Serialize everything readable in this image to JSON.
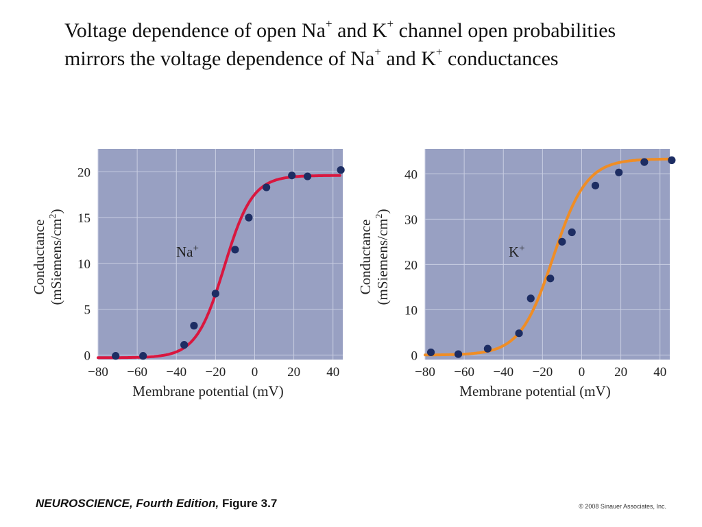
{
  "slide": {
    "title_parts": [
      "Voltage dependence of open Na",
      "+",
      " and K",
      "+",
      " channel open probabilities mirrors the voltage dependence of Na",
      "+",
      " and K",
      "+",
      " conductances"
    ],
    "footer_left_title": "NEUROSCIENCE, Fourth Edition,",
    "footer_left_fig": " Figure 3.7",
    "footer_right": "© 2008 Sinauer Associates, Inc."
  },
  "colors": {
    "plot_background": "#98a0c2",
    "grid": "#c9cee2",
    "marker": "#1d2d63",
    "na_curve": "#d9173f",
    "k_curve": "#ef8d25"
  },
  "chart_data": [
    {
      "type": "scatter",
      "xlabel": "Membrane potential (mV)",
      "ylabel_line1": "Conductance",
      "ylabel_line2_pre": "(mSiemens/cm",
      "ylabel_line2_sup": "2",
      "ylabel_line2_post": ")",
      "annotation": "Na",
      "annotation_sup": "+",
      "xlim": [
        -80,
        45
      ],
      "ylim": [
        -0.5,
        22.5
      ],
      "xticks": [
        -80,
        -60,
        -40,
        -20,
        0,
        20,
        40
      ],
      "xtick_labels": [
        "−80",
        "−60",
        "−40",
        "−20",
        "0",
        "20",
        "40"
      ],
      "yticks": [
        0,
        5,
        10,
        15,
        20
      ],
      "yticks_labels": [
        "0",
        "5",
        "10",
        "15",
        "20"
      ],
      "grid": true,
      "points": {
        "x": [
          -71,
          -57,
          -36,
          -31,
          -20,
          -10,
          -3,
          6,
          19,
          27,
          44
        ],
        "y": [
          -0.1,
          -0.1,
          1.1,
          3.2,
          6.7,
          11.5,
          15.0,
          18.3,
          19.6,
          19.5,
          20.2
        ]
      },
      "fit": {
        "Gmax": 19.9,
        "Vhalf": -15.5,
        "k": 7.2,
        "offset": -0.3
      },
      "curve_color": "#d9173f"
    },
    {
      "type": "scatter",
      "xlabel": "Membrane potential (mV)",
      "ylabel_line1": "Conductance",
      "ylabel_line2_pre": "(mSiemens/cm",
      "ylabel_line2_sup": "2",
      "ylabel_line2_post": ")",
      "annotation": "K",
      "annotation_sup": "+",
      "xlim": [
        -80,
        45
      ],
      "ylim": [
        -1,
        45.5
      ],
      "xticks": [
        -80,
        -60,
        -40,
        -20,
        0,
        20,
        40
      ],
      "xtick_labels": [
        "−80",
        "−60",
        "−40",
        "−20",
        "0",
        "20",
        "40"
      ],
      "yticks": [
        0,
        10,
        20,
        30,
        40
      ],
      "yticks_labels": [
        "0",
        "10",
        "20",
        "30",
        "40"
      ],
      "grid": true,
      "points": {
        "x": [
          -77,
          -63,
          -48,
          -32,
          -26,
          -16,
          -10,
          -5,
          7,
          19,
          32,
          46
        ],
        "y": [
          0.6,
          0.2,
          1.4,
          4.8,
          12.5,
          16.9,
          25.0,
          27.1,
          37.4,
          40.3,
          42.6,
          43.0
        ]
      },
      "fit": {
        "Gmax": 43.3,
        "Vhalf": -14.5,
        "k": 8.5,
        "offset": 0.0
      },
      "curve_color": "#ef8d25"
    }
  ]
}
